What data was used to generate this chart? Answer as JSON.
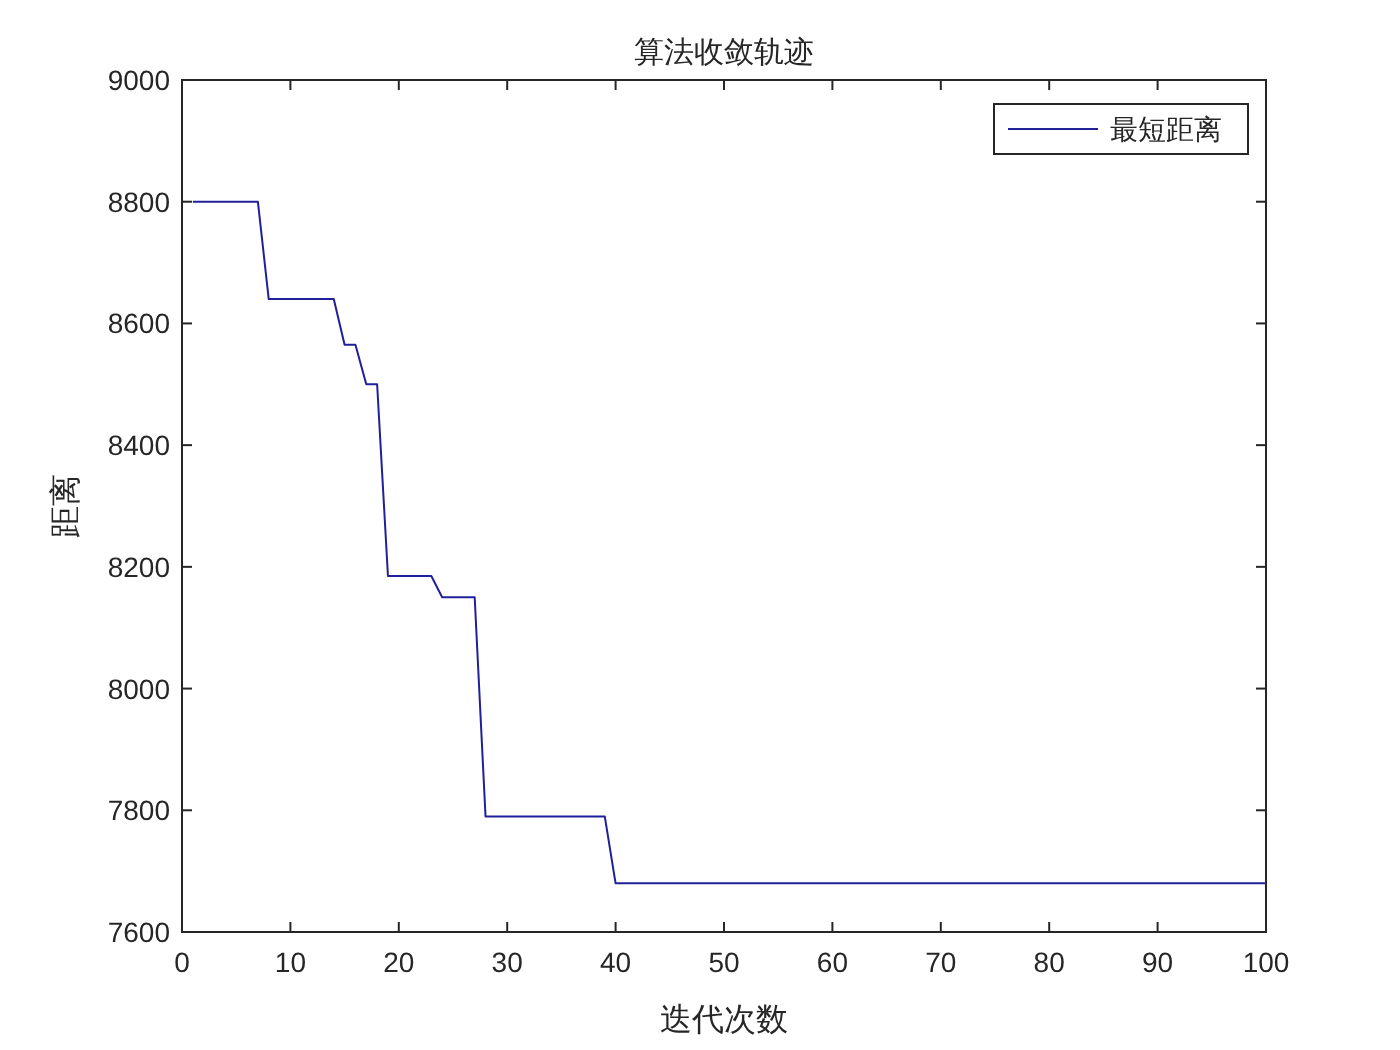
{
  "chart_data": {
    "type": "line",
    "title": "算法收敛轨迹",
    "xlabel": "迭代次数",
    "ylabel": "距离",
    "xlim": [
      0,
      100
    ],
    "ylim": [
      7600,
      9000
    ],
    "xticks": [
      0,
      10,
      20,
      30,
      40,
      50,
      60,
      70,
      80,
      90,
      100
    ],
    "yticks": [
      7600,
      7800,
      8000,
      8200,
      8400,
      8600,
      8800,
      9000
    ],
    "legend": "top right",
    "grid": false,
    "series": [
      {
        "name": "最短距离",
        "color": "#20209a",
        "x": [
          1,
          7,
          8,
          14,
          15,
          16,
          17,
          18,
          19,
          23,
          24,
          27,
          28,
          39,
          40,
          100
        ],
        "values": [
          8800,
          8800,
          8640,
          8640,
          8565,
          8565,
          8500,
          8500,
          8185,
          8185,
          8150,
          8150,
          7790,
          7790,
          7680,
          7680
        ]
      }
    ]
  }
}
